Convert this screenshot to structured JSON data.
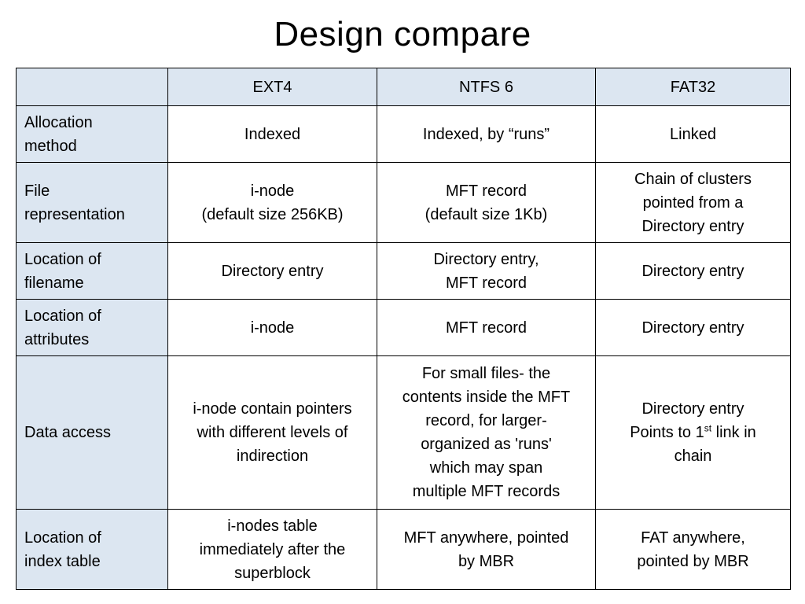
{
  "title": "Design compare",
  "table": {
    "header": [
      "",
      "EXT4",
      "NTFS 6",
      "FAT32"
    ],
    "rows": [
      {
        "label": [
          "Allocation",
          "method"
        ],
        "cells": [
          [
            "Indexed"
          ],
          [
            "Indexed, by “runs”"
          ],
          [
            "Linked"
          ]
        ]
      },
      {
        "label": [
          "File",
          "representation"
        ],
        "cells": [
          [
            "i-node",
            "(default size 256KB)"
          ],
          [
            "MFT record",
            "(default size 1Kb)"
          ],
          [
            "Chain of clusters",
            "pointed from a",
            "Directory entry"
          ]
        ]
      },
      {
        "label": [
          "Location of",
          "filename"
        ],
        "cells": [
          [
            "Directory entry"
          ],
          [
            "Directory entry,",
            "MFT record"
          ],
          [
            "Directory entry"
          ]
        ]
      },
      {
        "label": [
          "Location of",
          "attributes"
        ],
        "cells": [
          [
            "i-node"
          ],
          [
            "MFT record"
          ],
          [
            "Directory entry"
          ]
        ]
      },
      {
        "label": [
          "Data access"
        ],
        "cells": [
          [
            "i-node contain pointers",
            "with different levels of",
            "indirection"
          ],
          [
            "For small files- the",
            "contents inside the MFT",
            "record, for larger-",
            "organized as 'runs'",
            "which may span",
            "multiple MFT records"
          ],
          {
            "line1": "Directory entry",
            "line2_before": "Points to 1",
            "line2_sup": "st",
            "line2_after": " link in",
            "line3": "chain"
          }
        ]
      },
      {
        "label": [
          "Location of",
          "index table"
        ],
        "cells": [
          [
            "i-nodes table",
            "immediately after the",
            "superblock"
          ],
          [
            "MFT anywhere, pointed",
            "by MBR"
          ],
          [
            "FAT anywhere,",
            "pointed by MBR"
          ]
        ]
      }
    ]
  }
}
